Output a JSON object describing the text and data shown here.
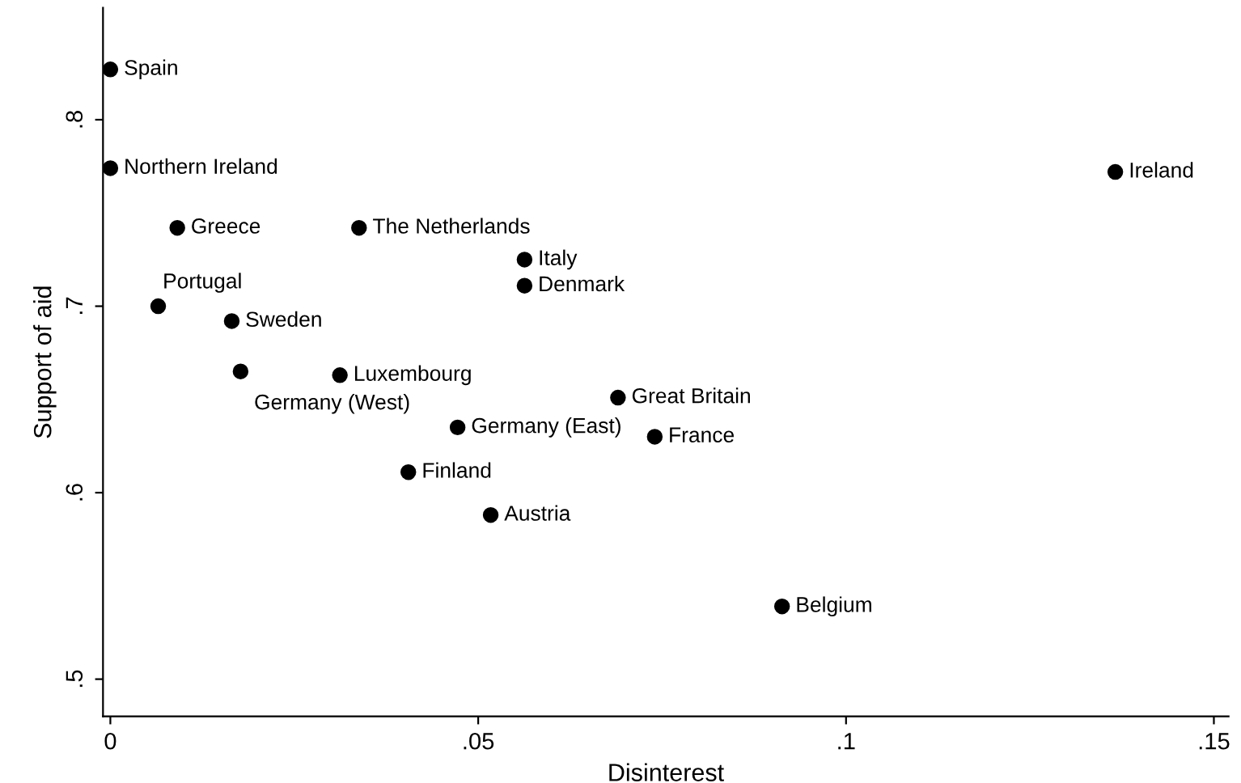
{
  "chart_data": {
    "type": "scatter",
    "xlabel": "Disinterest",
    "ylabel": "Support of aid",
    "x": [
      0,
      0,
      0.0091,
      0.0338,
      0.0563,
      0.0563,
      0.0065,
      0.0165,
      0.0177,
      0.0312,
      0.069,
      0.0472,
      0.074,
      0.0405,
      0.0517,
      0.0913,
      0.1366
    ],
    "series": [
      {
        "color": "#000000",
        "values": [
          0.827,
          0.774,
          0.742,
          0.742,
          0.725,
          0.711,
          0.7,
          0.692,
          0.665,
          0.663,
          0.651,
          0.635,
          0.63,
          0.611,
          0.588,
          0.539,
          0.772
        ]
      }
    ],
    "annotations": [
      {
        "text": "Spain",
        "x": 0,
        "y": 0.827
      },
      {
        "text": "Northern Ireland",
        "x": 0,
        "y": 0.774
      },
      {
        "text": "Greece",
        "x": 0.0091,
        "y": 0.742
      },
      {
        "text": "The Netherlands",
        "x": 0.0338,
        "y": 0.742
      },
      {
        "text": "Italy",
        "x": 0.0563,
        "y": 0.725
      },
      {
        "text": "Denmark",
        "x": 0.0563,
        "y": 0.711
      },
      {
        "text": "Portugal",
        "x": 0.0065,
        "y": 0.7
      },
      {
        "text": "Sweden",
        "x": 0.0165,
        "y": 0.692
      },
      {
        "text": "Germany (West)",
        "x": 0.0177,
        "y": 0.665
      },
      {
        "text": "Luxembourg",
        "x": 0.0312,
        "y": 0.663
      },
      {
        "text": "Great Britain",
        "x": 0.069,
        "y": 0.651
      },
      {
        "text": "Germany (East)",
        "x": 0.0472,
        "y": 0.635
      },
      {
        "text": "France",
        "x": 0.074,
        "y": 0.63
      },
      {
        "text": "Finland",
        "x": 0.0405,
        "y": 0.611
      },
      {
        "text": "Austria",
        "x": 0.0517,
        "y": 0.588
      },
      {
        "text": "Belgium",
        "x": 0.0913,
        "y": 0.539
      },
      {
        "text": "Ireland",
        "x": 0.1366,
        "y": 0.772
      }
    ],
    "xlim": [
      -0.001,
      0.152
    ],
    "ylim": [
      0.48,
      0.86
    ],
    "xticks": [
      {
        "value": 0,
        "label": "0"
      },
      {
        "value": 0.05,
        "label": ".05"
      },
      {
        "value": 0.1,
        "label": ".1"
      },
      {
        "value": 0.15,
        "label": ".15"
      }
    ],
    "yticks": [
      {
        "value": 0.5,
        "label": ".5"
      },
      {
        "value": 0.6,
        "label": ".6"
      },
      {
        "value": 0.7,
        "label": ".7"
      },
      {
        "value": 0.8,
        "label": ".8"
      }
    ],
    "marker": "circle",
    "grid": false,
    "legend": false
  }
}
